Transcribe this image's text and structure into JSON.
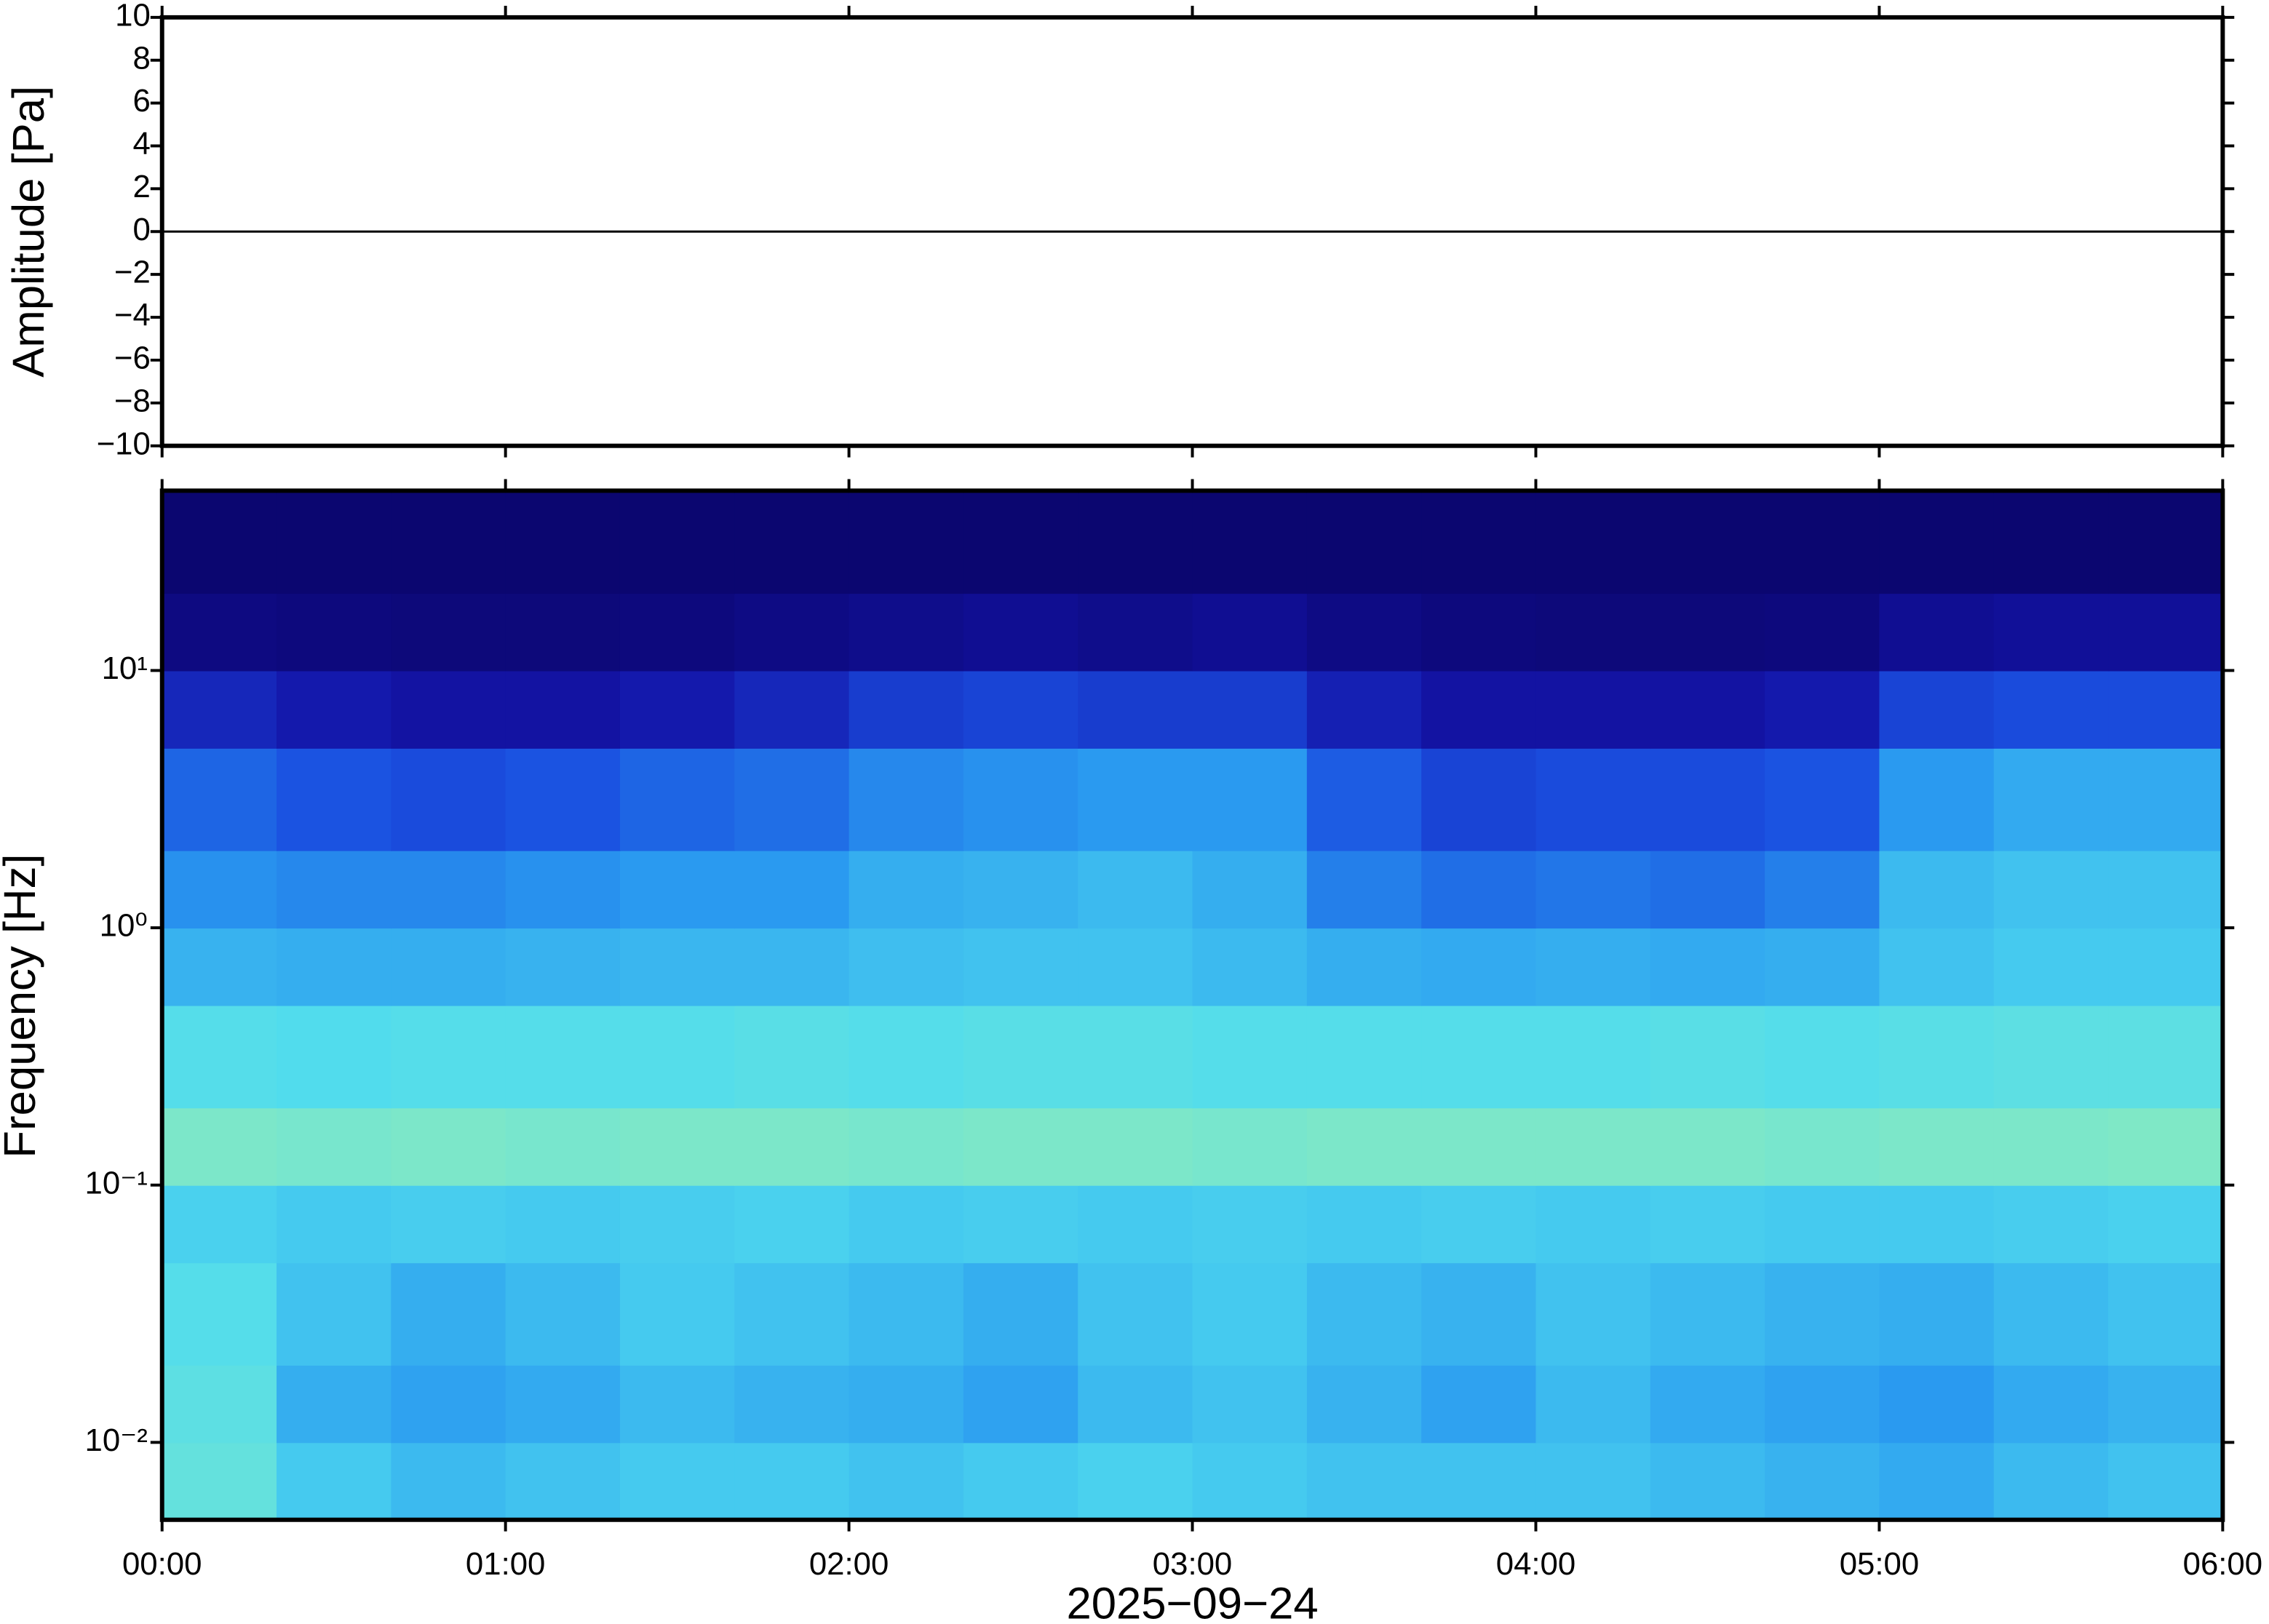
{
  "chart_data": [
    {
      "type": "line",
      "ylabel": "Amplitude [Pa]",
      "xlim": [
        0,
        360
      ],
      "ylim": [
        -10,
        10
      ],
      "yticks": [
        {
          "value": -10,
          "label": "−10"
        },
        {
          "value": -8,
          "label": "−8"
        },
        {
          "value": -6,
          "label": "−6"
        },
        {
          "value": -4,
          "label": "−4"
        },
        {
          "value": -2,
          "label": "−2"
        },
        0,
        2,
        4,
        6,
        8,
        10
      ],
      "x": [
        0,
        360
      ],
      "series": [
        {
          "color": "#000000",
          "values": [
            0,
            0
          ]
        }
      ]
    },
    {
      "type": "spectrogram",
      "ylabel": "Frequency [Hz]",
      "xlabel": "2025−09−24",
      "log_y": true,
      "xlim": [
        0,
        360
      ],
      "xticks": [
        {
          "value": 0,
          "label": "00:00"
        },
        {
          "value": 60,
          "label": "01:00"
        },
        {
          "value": 120,
          "label": "02:00"
        },
        {
          "value": 180,
          "label": "03:00"
        },
        {
          "value": 240,
          "label": "04:00"
        },
        {
          "value": 300,
          "label": "05:00"
        },
        {
          "value": 360,
          "label": "06:00"
        }
      ],
      "ylim": [
        0.005,
        50
      ],
      "yticks": [
        {
          "value": 0.01,
          "label": "10⁻²"
        },
        {
          "value": 0.1,
          "label": "10⁻¹"
        },
        {
          "value": 1,
          "label": "10⁰"
        },
        {
          "value": 10,
          "label": "10¹"
        }
      ],
      "clim": [
        0,
        100
      ],
      "colormap": [
        "#0b0670",
        "#1414a8",
        "#1a50e0",
        "#2a9af0",
        "#50dcee",
        "#90ecb8",
        "#eef38a"
      ],
      "time_bins": [
        0,
        20,
        40,
        60,
        80,
        100,
        120,
        140,
        160,
        180,
        200,
        220,
        240,
        260,
        280,
        300,
        320,
        340,
        360
      ],
      "freq_bins": [
        0.005,
        0.01,
        0.02,
        0.05,
        0.1,
        0.2,
        0.5,
        1,
        2,
        5,
        10,
        20,
        50
      ],
      "level": [
        [
          72,
          62,
          58,
          60,
          62,
          62,
          60,
          62,
          64,
          62,
          60,
          60,
          60,
          58,
          56,
          54,
          58,
          60
        ],
        [
          70,
          55,
          52,
          54,
          58,
          56,
          55,
          52,
          58,
          60,
          56,
          52,
          58,
          54,
          52,
          50,
          54,
          56
        ],
        [
          68,
          60,
          55,
          58,
          62,
          60,
          58,
          55,
          60,
          62,
          58,
          56,
          60,
          58,
          56,
          55,
          58,
          60
        ],
        [
          64,
          62,
          63,
          62,
          63,
          64,
          62,
          63,
          62,
          63,
          62,
          63,
          62,
          63,
          62,
          62,
          63,
          64
        ],
        [
          78,
          77,
          78,
          77,
          78,
          78,
          77,
          78,
          78,
          77,
          78,
          78,
          78,
          78,
          77,
          78,
          78,
          79
        ],
        [
          68,
          67,
          68,
          68,
          68,
          69,
          68,
          69,
          69,
          68,
          68,
          68,
          68,
          69,
          68,
          69,
          70,
          70
        ],
        [
          56,
          55,
          55,
          56,
          57,
          57,
          59,
          60,
          60,
          58,
          55,
          54,
          55,
          54,
          55,
          60,
          62,
          62
        ],
        [
          48,
          46,
          46,
          48,
          50,
          50,
          55,
          56,
          58,
          55,
          44,
          40,
          42,
          40,
          44,
          58,
          60,
          60
        ],
        [
          38,
          34,
          32,
          34,
          38,
          40,
          46,
          48,
          50,
          50,
          36,
          30,
          32,
          32,
          34,
          50,
          54,
          54
        ],
        [
          22,
          18,
          15,
          15,
          18,
          22,
          28,
          30,
          28,
          28,
          20,
          15,
          15,
          15,
          18,
          30,
          32,
          32
        ],
        [
          5,
          4,
          3,
          3,
          4,
          6,
          8,
          10,
          8,
          10,
          6,
          4,
          3,
          3,
          4,
          10,
          12,
          12
        ],
        [
          0,
          0,
          0,
          0,
          0,
          0,
          0,
          0,
          0,
          0,
          0,
          0,
          0,
          0,
          0,
          0,
          0,
          0
        ]
      ]
    }
  ]
}
